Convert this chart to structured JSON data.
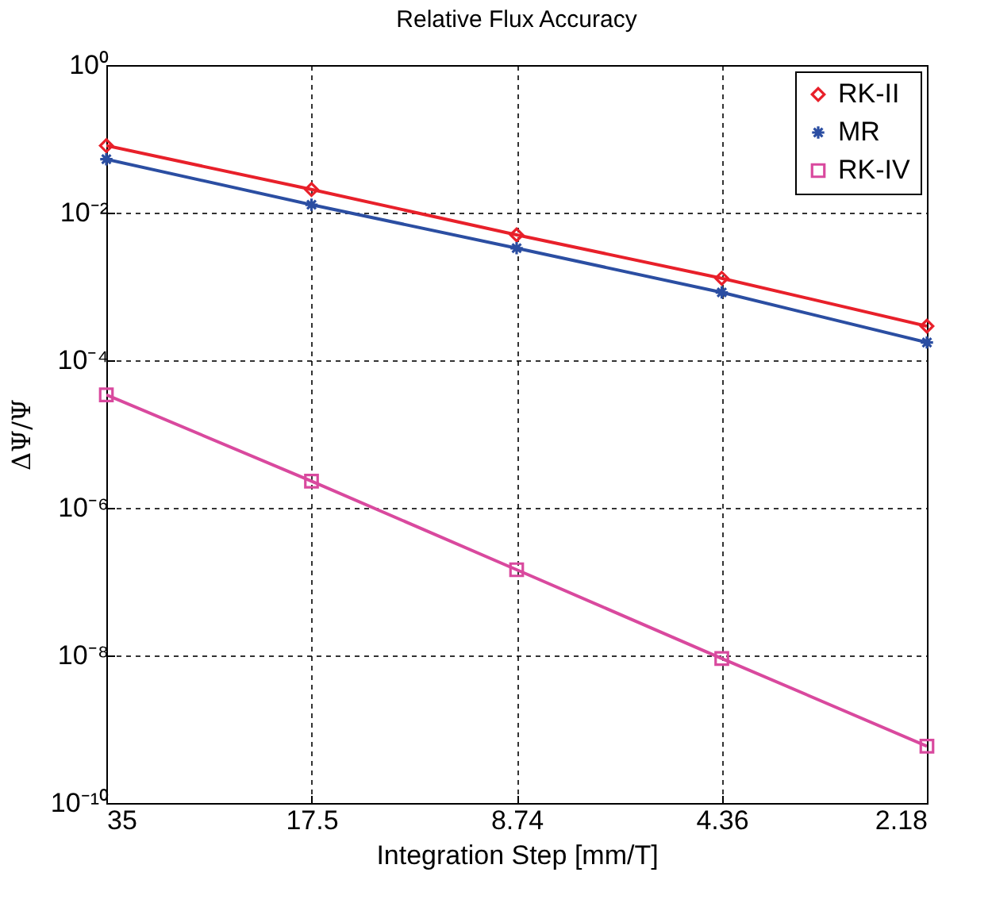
{
  "chart_data": {
    "type": "line",
    "title": "Relative Flux Accuracy",
    "xlabel": "Integration Step [mm/T]",
    "ylabel": "ΔΨ/Ψ",
    "categories": [
      "35",
      "17.5",
      "8.74",
      "4.36",
      "2.18"
    ],
    "series": [
      {
        "name": "RK-II",
        "color": "#e8202a",
        "marker": "diamond",
        "values": [
          0.081,
          0.0206,
          0.005,
          0.00129,
          0.00029
        ]
      },
      {
        "name": "MR",
        "color": "#2b4ea2",
        "marker": "cross",
        "values": [
          0.053,
          0.0128,
          0.0033,
          0.00083,
          0.000174
        ]
      },
      {
        "name": "RK-IV",
        "color": "#d9499e",
        "marker": "square",
        "values": [
          3.4e-05,
          2.3e-06,
          1.45e-07,
          9.1e-09,
          5.9e-10
        ]
      }
    ],
    "log": true,
    "ylim": [
      1e-10,
      1
    ],
    "yticks": [
      {
        "value": 1e-10,
        "label": "10⁻¹⁰"
      },
      {
        "value": 1e-08,
        "label": "10⁻⁸"
      },
      {
        "value": 1e-06,
        "label": "10⁻⁶"
      },
      {
        "value": 0.0001,
        "label": "10⁻⁴"
      },
      {
        "value": 0.01,
        "label": "10⁻²"
      },
      {
        "value": 1,
        "label": "10⁰"
      }
    ],
    "grid": true,
    "legend": "top right",
    "line_style": "solid"
  }
}
